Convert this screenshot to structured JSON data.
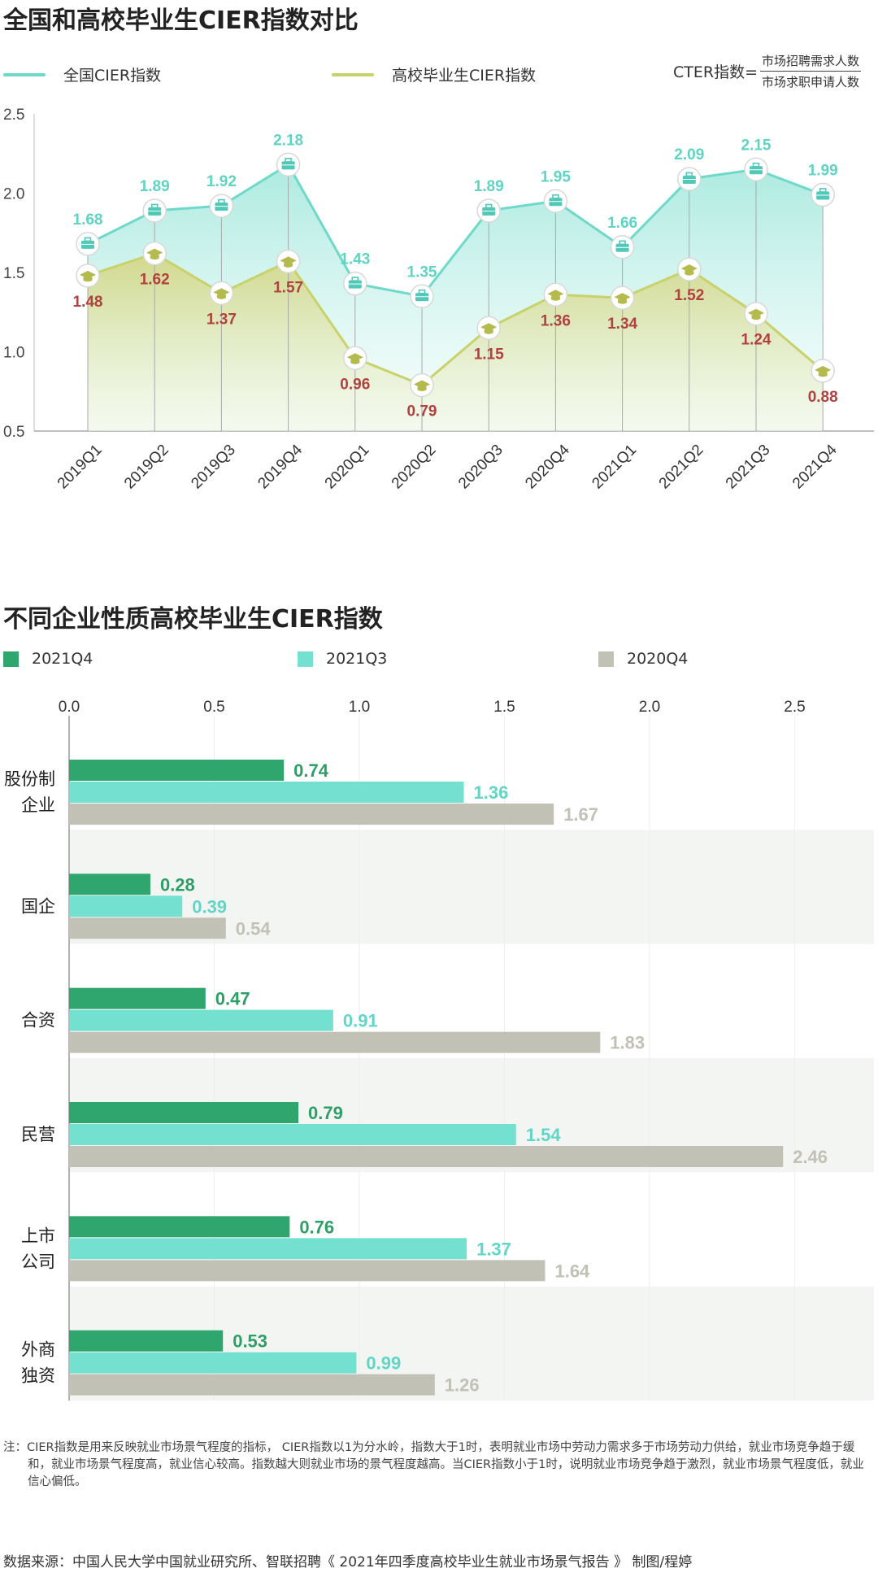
{
  "chart_data": [
    {
      "type": "line",
      "title": "全国和高校毕业生CIER指数对比",
      "formula": {
        "prefix": "CTER指数=",
        "numerator": "市场招聘需求人数",
        "denominator": "市场求职申请人数"
      },
      "categories": [
        "2019Q1",
        "2019Q2",
        "2019Q3",
        "2019Q4",
        "2020Q1",
        "2020Q2",
        "2020Q3",
        "2020Q4",
        "2021Q1",
        "2021Q2",
        "2021Q3",
        "2021Q4"
      ],
      "series": [
        {
          "name": "全国CIER指数",
          "values": [
            1.68,
            1.89,
            1.92,
            2.18,
            1.43,
            1.35,
            1.89,
            1.95,
            1.66,
            2.09,
            2.15,
            1.99
          ],
          "color": "#6fd9c9",
          "label_color": "#5fd4c2",
          "icon": "briefcase-icon"
        },
        {
          "name": "高校毕业生CIER指数",
          "values": [
            1.48,
            1.62,
            1.37,
            1.57,
            0.96,
            0.79,
            1.15,
            1.36,
            1.34,
            1.52,
            1.24,
            0.88
          ],
          "color": "#c9d26a",
          "label_color": "#b0413e",
          "icon": "graduation-cap-icon"
        }
      ],
      "y_ticks": [
        "0.5",
        "1.0",
        "1.5",
        "2.0",
        "2.5"
      ],
      "ylim": [
        0.5,
        2.5
      ]
    },
    {
      "type": "bar",
      "title": "不同企业性质高校毕业生CIER指数",
      "categories": [
        [
          "股份制",
          "企业"
        ],
        [
          "国企"
        ],
        [
          "合资"
        ],
        [
          "民营"
        ],
        [
          "上市",
          "公司"
        ],
        [
          "外商",
          "独资"
        ]
      ],
      "series": [
        {
          "name": "2021Q4",
          "values": [
            0.74,
            0.28,
            0.47,
            0.79,
            0.76,
            0.53
          ],
          "color": "#2ea66d",
          "label_color": "#2e9e67"
        },
        {
          "name": "2021Q3",
          "values": [
            1.36,
            0.39,
            0.91,
            1.54,
            1.37,
            0.99
          ],
          "color": "#74e0d0",
          "label_color": "#62d6c6"
        },
        {
          "name": "2020Q4",
          "values": [
            1.67,
            0.54,
            1.83,
            2.46,
            1.64,
            1.26
          ],
          "color": "#c1c1b5",
          "label_color": "#c1c1b5"
        }
      ],
      "x_ticks": [
        "0.0",
        "0.5",
        "1.0",
        "1.5",
        "2.0",
        "2.5"
      ],
      "xlim": [
        0,
        2.8
      ]
    }
  ],
  "note": "注：CIER指数是用来反映就业市场景气程度的指标， CIER指数以1为分水岭，指数大于1时，表明就业市场中劳动力需求多于市场劳动力供给，就业市场竞争趋于缓和，就业市场景气程度高，就业信心较高。指数越大则就业市场的景气程度越高。当CIER指数小于1时，说明就业市场竞争趋于激烈，就业市场景气程度低，就业信心偏低。",
  "source": "数据来源：中国人民大学中国就业研究所、智联招聘《 2021年四季度高校毕业生就业市场景气报告 》   制图/程婷"
}
